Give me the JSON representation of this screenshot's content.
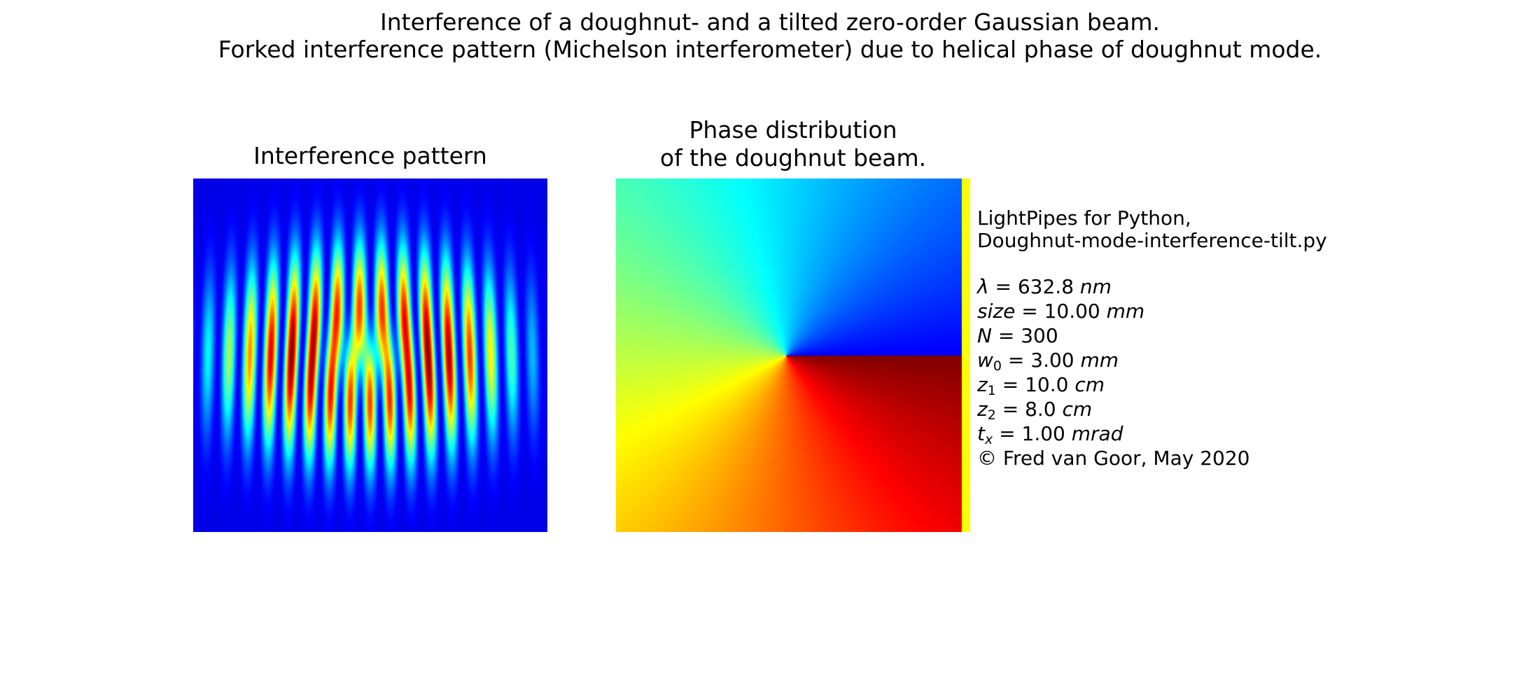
{
  "figure": {
    "title_line1": "Interference of a doughnut- and a tilted zero-order Gaussian beam.",
    "title_line2": "Forked interference pattern (Michelson interferometer) due to helical phase of doughnut mode.",
    "panel_left_title": "Interference pattern",
    "panel_right_title_line1": "Phase distribution",
    "panel_right_title_line2": "of the doughnut beam."
  },
  "info": {
    "line1": "LightPipes for Python,",
    "line2": "Doughnut-mode-interference-tilt.py",
    "params": [
      {
        "sym": "λ",
        "sub": "",
        "value": "632.8",
        "unit": "nm"
      },
      {
        "sym": "size",
        "sub": "",
        "value": "10.00",
        "unit": "mm"
      },
      {
        "sym": "N",
        "sub": "",
        "value": "300",
        "unit": ""
      },
      {
        "sym": "w",
        "sub": "0",
        "value": "3.00",
        "unit": "mm"
      },
      {
        "sym": "z",
        "sub": "1",
        "value": "10.0",
        "unit": "cm"
      },
      {
        "sym": "z",
        "sub": "2",
        "value": "8.0",
        "unit": "cm"
      },
      {
        "sym": "t",
        "sub": "x",
        "value": "1.00",
        "unit": "mrad"
      }
    ],
    "copyright": "© Fred van Goor, May 2020"
  },
  "colormap": "jet"
}
